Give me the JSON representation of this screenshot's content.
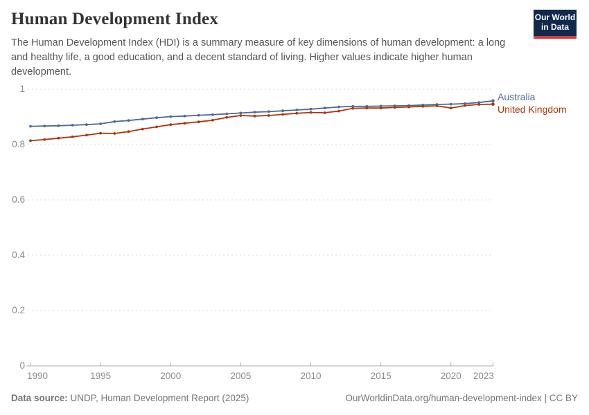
{
  "header": {
    "title": "Human Development Index",
    "subtitle": "The Human Development Index (HDI) is a summary measure of key dimensions of human development: a long and healthy life, a good education, and a decent standard of living. Higher values indicate higher human development.",
    "logo": {
      "line1": "Our World",
      "line2": "in Data",
      "bg_color": "#12294e",
      "accent_color": "#d93a3f"
    }
  },
  "chart_data": {
    "type": "line",
    "title": "Human Development Index",
    "xlabel": "",
    "ylabel": "",
    "ylim": [
      0,
      1
    ],
    "yticks": [
      0,
      0.2,
      0.4,
      0.6,
      0.8,
      1
    ],
    "xticks": [
      1990,
      1995,
      2000,
      2005,
      2010,
      2015,
      2020,
      2023
    ],
    "grid": "horizontal dashed",
    "legend_position": "right of line ends",
    "x": [
      1990,
      1991,
      1992,
      1993,
      1994,
      1995,
      1996,
      1997,
      1998,
      1999,
      2000,
      2001,
      2002,
      2003,
      2004,
      2005,
      2006,
      2007,
      2008,
      2009,
      2010,
      2011,
      2012,
      2013,
      2014,
      2015,
      2016,
      2017,
      2018,
      2019,
      2020,
      2021,
      2022,
      2023
    ],
    "series": [
      {
        "name": "Australia",
        "color": "#4C6A9C",
        "values": [
          0.866,
          0.867,
          0.868,
          0.87,
          0.872,
          0.875,
          0.883,
          0.887,
          0.892,
          0.897,
          0.901,
          0.903,
          0.906,
          0.908,
          0.911,
          0.914,
          0.917,
          0.919,
          0.922,
          0.925,
          0.928,
          0.932,
          0.936,
          0.938,
          0.938,
          0.939,
          0.94,
          0.941,
          0.943,
          0.945,
          0.946,
          0.948,
          0.952,
          0.958
        ]
      },
      {
        "name": "United Kingdom",
        "color": "#B13507",
        "values": [
          0.814,
          0.818,
          0.823,
          0.828,
          0.834,
          0.841,
          0.84,
          0.847,
          0.856,
          0.864,
          0.872,
          0.877,
          0.882,
          0.888,
          0.898,
          0.905,
          0.903,
          0.905,
          0.909,
          0.913,
          0.916,
          0.915,
          0.921,
          0.931,
          0.932,
          0.932,
          0.934,
          0.936,
          0.938,
          0.94,
          0.932,
          0.941,
          0.945,
          0.946
        ]
      }
    ],
    "axis_color": "#ababab",
    "gridline_color": "#dadada",
    "tick_label_color": "#8a8a8a"
  },
  "footer": {
    "source_label": "Data source:",
    "source_text": " UNDP, Human Development Report (2025)",
    "rights": "OurWorldinData.org/human-development-index | CC BY"
  }
}
